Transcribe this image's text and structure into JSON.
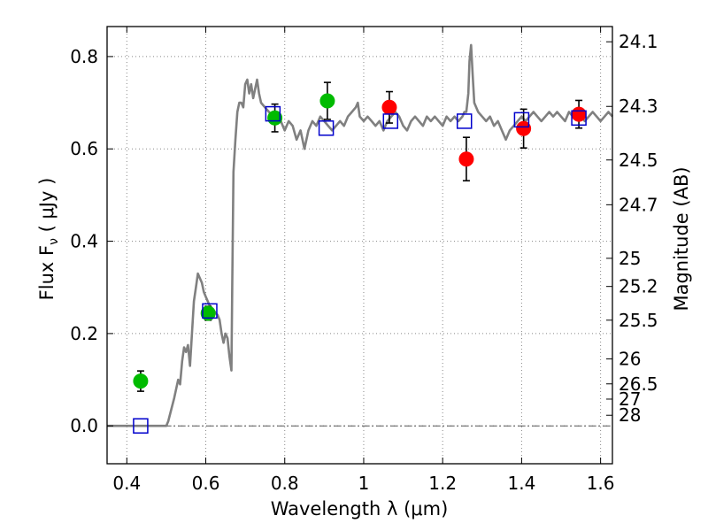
{
  "chart_data": {
    "type": "scatter",
    "xlabel": "Wavelength  λ (μm)",
    "ylabel": "Flux  F",
    "ylabel_sub": "ν",
    "ylabel_unit": " ( μJy )",
    "y2label": "Magnitude (AB)",
    "xlim": [
      0.35,
      1.63
    ],
    "ylim": [
      -0.082,
      0.865
    ],
    "grid": true,
    "x_ticks": [
      0.4,
      0.6,
      0.8,
      1.0,
      1.2,
      1.4,
      1.6
    ],
    "x_tick_labels": [
      "0.4",
      "0.6",
      "0.8",
      "1",
      "1.2",
      "1.4",
      "1.6"
    ],
    "y_ticks": [
      0.0,
      0.2,
      0.4,
      0.6,
      0.8
    ],
    "y_tick_labels": [
      "0.0",
      "0.2",
      "0.4",
      "0.6",
      "0.8"
    ],
    "y2_ticks": [
      {
        "label": "24.1",
        "flux": 0.832
      },
      {
        "label": "24.3",
        "flux": 0.692
      },
      {
        "label": "24.5",
        "flux": 0.576
      },
      {
        "label": "24.7",
        "flux": 0.479
      },
      {
        "label": "25",
        "flux": 0.363
      },
      {
        "label": "25.2",
        "flux": 0.302
      },
      {
        "label": "25.5",
        "flux": 0.229
      },
      {
        "label": "26",
        "flux": 0.145
      },
      {
        "label": "26.5",
        "flux": 0.091
      },
      {
        "label": "27",
        "flux": 0.058
      },
      {
        "label": "28",
        "flux": 0.023
      }
    ],
    "colors": {
      "model": "#808080",
      "green": "#00bb00",
      "red": "#ff0000",
      "square": "#0000cc",
      "errorbar": "#000000",
      "grid": "#888888"
    },
    "model_spectrum": [
      [
        0.35,
        0.0
      ],
      [
        0.49,
        0.0
      ],
      [
        0.5,
        0.0
      ],
      [
        0.505,
        0.01
      ],
      [
        0.52,
        0.06
      ],
      [
        0.53,
        0.1
      ],
      [
        0.535,
        0.09
      ],
      [
        0.54,
        0.14
      ],
      [
        0.545,
        0.17
      ],
      [
        0.55,
        0.16
      ],
      [
        0.555,
        0.175
      ],
      [
        0.56,
        0.13
      ],
      [
        0.565,
        0.2
      ],
      [
        0.57,
        0.27
      ],
      [
        0.575,
        0.3
      ],
      [
        0.58,
        0.33
      ],
      [
        0.585,
        0.32
      ],
      [
        0.59,
        0.31
      ],
      [
        0.595,
        0.29
      ],
      [
        0.6,
        0.28
      ],
      [
        0.61,
        0.26
      ],
      [
        0.62,
        0.25
      ],
      [
        0.63,
        0.24
      ],
      [
        0.635,
        0.23
      ],
      [
        0.64,
        0.2
      ],
      [
        0.645,
        0.18
      ],
      [
        0.65,
        0.2
      ],
      [
        0.655,
        0.19
      ],
      [
        0.66,
        0.15
      ],
      [
        0.665,
        0.12
      ],
      [
        0.667,
        0.3
      ],
      [
        0.67,
        0.55
      ],
      [
        0.675,
        0.62
      ],
      [
        0.68,
        0.68
      ],
      [
        0.685,
        0.7
      ],
      [
        0.69,
        0.7
      ],
      [
        0.695,
        0.69
      ],
      [
        0.7,
        0.74
      ],
      [
        0.705,
        0.75
      ],
      [
        0.71,
        0.72
      ],
      [
        0.715,
        0.74
      ],
      [
        0.72,
        0.71
      ],
      [
        0.725,
        0.73
      ],
      [
        0.73,
        0.75
      ],
      [
        0.735,
        0.72
      ],
      [
        0.74,
        0.7
      ],
      [
        0.75,
        0.69
      ],
      [
        0.76,
        0.68
      ],
      [
        0.77,
        0.67
      ],
      [
        0.78,
        0.68
      ],
      [
        0.79,
        0.66
      ],
      [
        0.8,
        0.64
      ],
      [
        0.81,
        0.66
      ],
      [
        0.82,
        0.65
      ],
      [
        0.83,
        0.62
      ],
      [
        0.84,
        0.64
      ],
      [
        0.85,
        0.6
      ],
      [
        0.86,
        0.64
      ],
      [
        0.87,
        0.66
      ],
      [
        0.88,
        0.65
      ],
      [
        0.89,
        0.67
      ],
      [
        0.9,
        0.66
      ],
      [
        0.91,
        0.65
      ],
      [
        0.92,
        0.64
      ],
      [
        0.93,
        0.65
      ],
      [
        0.94,
        0.66
      ],
      [
        0.95,
        0.65
      ],
      [
        0.96,
        0.67
      ],
      [
        0.97,
        0.68
      ],
      [
        0.98,
        0.69
      ],
      [
        0.985,
        0.7
      ],
      [
        0.99,
        0.67
      ],
      [
        1.0,
        0.66
      ],
      [
        1.01,
        0.67
      ],
      [
        1.02,
        0.66
      ],
      [
        1.03,
        0.65
      ],
      [
        1.04,
        0.66
      ],
      [
        1.05,
        0.64
      ],
      [
        1.06,
        0.66
      ],
      [
        1.07,
        0.67
      ],
      [
        1.08,
        0.68
      ],
      [
        1.09,
        0.67
      ],
      [
        1.1,
        0.65
      ],
      [
        1.11,
        0.64
      ],
      [
        1.12,
        0.66
      ],
      [
        1.13,
        0.67
      ],
      [
        1.14,
        0.66
      ],
      [
        1.15,
        0.65
      ],
      [
        1.16,
        0.67
      ],
      [
        1.17,
        0.66
      ],
      [
        1.18,
        0.67
      ],
      [
        1.19,
        0.66
      ],
      [
        1.2,
        0.65
      ],
      [
        1.21,
        0.67
      ],
      [
        1.22,
        0.66
      ],
      [
        1.23,
        0.67
      ],
      [
        1.24,
        0.66
      ],
      [
        1.25,
        0.67
      ],
      [
        1.255,
        0.68
      ],
      [
        1.26,
        0.68
      ],
      [
        1.265,
        0.72
      ],
      [
        1.268,
        0.79
      ],
      [
        1.272,
        0.825
      ],
      [
        1.276,
        0.76
      ],
      [
        1.28,
        0.7
      ],
      [
        1.29,
        0.68
      ],
      [
        1.3,
        0.67
      ],
      [
        1.31,
        0.66
      ],
      [
        1.32,
        0.67
      ],
      [
        1.33,
        0.65
      ],
      [
        1.34,
        0.66
      ],
      [
        1.35,
        0.64
      ],
      [
        1.36,
        0.62
      ],
      [
        1.37,
        0.64
      ],
      [
        1.38,
        0.65
      ],
      [
        1.39,
        0.66
      ],
      [
        1.4,
        0.67
      ],
      [
        1.41,
        0.66
      ],
      [
        1.42,
        0.67
      ],
      [
        1.43,
        0.68
      ],
      [
        1.44,
        0.67
      ],
      [
        1.45,
        0.66
      ],
      [
        1.46,
        0.67
      ],
      [
        1.47,
        0.68
      ],
      [
        1.48,
        0.67
      ],
      [
        1.49,
        0.68
      ],
      [
        1.5,
        0.67
      ],
      [
        1.51,
        0.66
      ],
      [
        1.52,
        0.68
      ],
      [
        1.53,
        0.67
      ],
      [
        1.54,
        0.68
      ],
      [
        1.55,
        0.67
      ],
      [
        1.56,
        0.66
      ],
      [
        1.57,
        0.67
      ],
      [
        1.58,
        0.68
      ],
      [
        1.59,
        0.67
      ],
      [
        1.6,
        0.66
      ],
      [
        1.61,
        0.67
      ],
      [
        1.62,
        0.68
      ],
      [
        1.63,
        0.67
      ]
    ],
    "photometry": [
      {
        "x": 0.435,
        "y": 0.097,
        "err": 0.022,
        "color": "green"
      },
      {
        "x": 0.606,
        "y": 0.244,
        "err": 0.015,
        "color": "green"
      },
      {
        "x": 0.775,
        "y": 0.667,
        "err": 0.03,
        "color": "green"
      },
      {
        "x": 0.908,
        "y": 0.704,
        "err": 0.04,
        "color": "green"
      },
      {
        "x": 1.065,
        "y": 0.69,
        "err": 0.034,
        "color": "red"
      },
      {
        "x": 1.26,
        "y": 0.578,
        "err": 0.047,
        "color": "red"
      },
      {
        "x": 1.405,
        "y": 0.644,
        "err": 0.042,
        "color": "red"
      },
      {
        "x": 1.545,
        "y": 0.675,
        "err": 0.03,
        "color": "red"
      }
    ],
    "model_points": [
      {
        "x": 0.435,
        "y": 0.0
      },
      {
        "x": 0.61,
        "y": 0.249
      },
      {
        "x": 0.77,
        "y": 0.676
      },
      {
        "x": 0.905,
        "y": 0.645
      },
      {
        "x": 1.068,
        "y": 0.66
      },
      {
        "x": 1.255,
        "y": 0.66
      },
      {
        "x": 1.4,
        "y": 0.663
      },
      {
        "x": 1.545,
        "y": 0.667
      }
    ]
  }
}
